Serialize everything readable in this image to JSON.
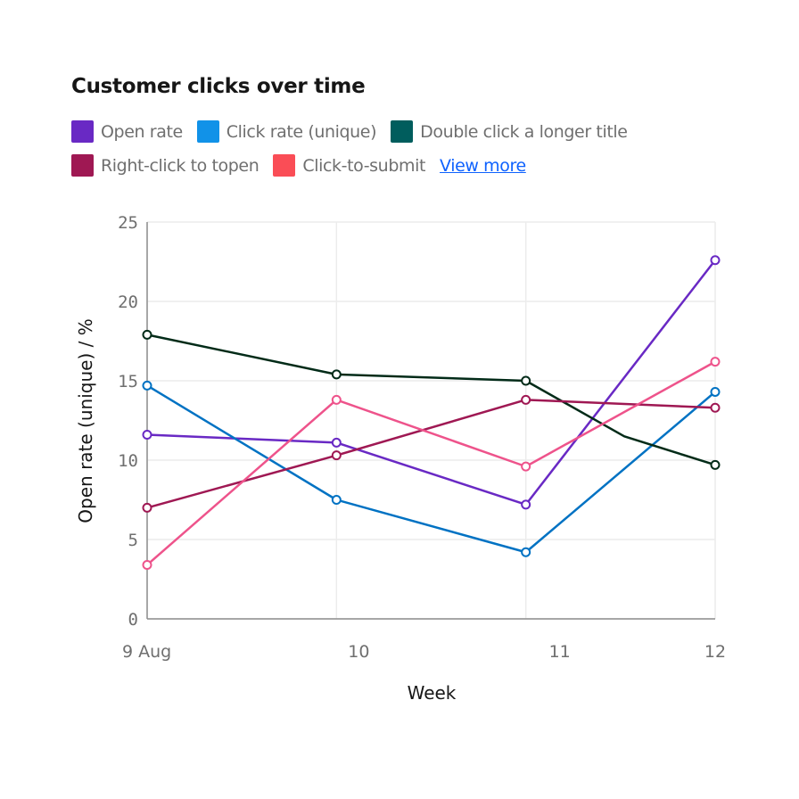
{
  "chart_data": {
    "type": "line",
    "title": "Customer clicks over time",
    "xlabel": "Week",
    "ylabel": "Open rate (unique) / %",
    "ylim": [
      0,
      25
    ],
    "yticks": [
      "0",
      "5",
      "10",
      "15",
      "20",
      "25"
    ],
    "xticks": [
      {
        "x": 9,
        "label": "9 Aug"
      },
      {
        "x": 10,
        "label": "10"
      },
      {
        "x": 11,
        "label": "11"
      },
      {
        "x": 12,
        "label": "12"
      }
    ],
    "grid": true,
    "legend_position": "top-left",
    "legend_link": "View more",
    "series": [
      {
        "name": "Open rate",
        "legend_color": "#6929c4",
        "line_color": "#6929c4",
        "points": [
          [
            9,
            11.6
          ],
          [
            10,
            11.1
          ],
          [
            11,
            7.2
          ],
          [
            12,
            22.6
          ]
        ]
      },
      {
        "name": "Click rate (unique)",
        "legend_color": "#1192e8",
        "line_color": "#0072c3",
        "points": [
          [
            9,
            14.7
          ],
          [
            10,
            7.5
          ],
          [
            11,
            4.2
          ],
          [
            12,
            14.3
          ]
        ]
      },
      {
        "name": "Double click a longer title",
        "legend_color": "#005d5d",
        "line_color": "#022b18",
        "points": [
          [
            9,
            17.9
          ],
          [
            10,
            15.4
          ],
          [
            11,
            15.0
          ],
          [
            11.52,
            11.5,
            "nomarker"
          ],
          [
            12,
            9.7
          ]
        ]
      },
      {
        "name": "Right-click to topen",
        "legend_color": "#9f1853",
        "line_color": "#9f1853",
        "points": [
          [
            9,
            7.0
          ],
          [
            10,
            10.3
          ],
          [
            11,
            13.8
          ],
          [
            12,
            13.3
          ]
        ]
      },
      {
        "name": "Click-to-submit",
        "legend_color": "#fa4d56",
        "line_color": "#ee538b",
        "points": [
          [
            9,
            3.4
          ],
          [
            10,
            13.8
          ],
          [
            11,
            9.6
          ],
          [
            12,
            16.2
          ]
        ]
      }
    ]
  }
}
